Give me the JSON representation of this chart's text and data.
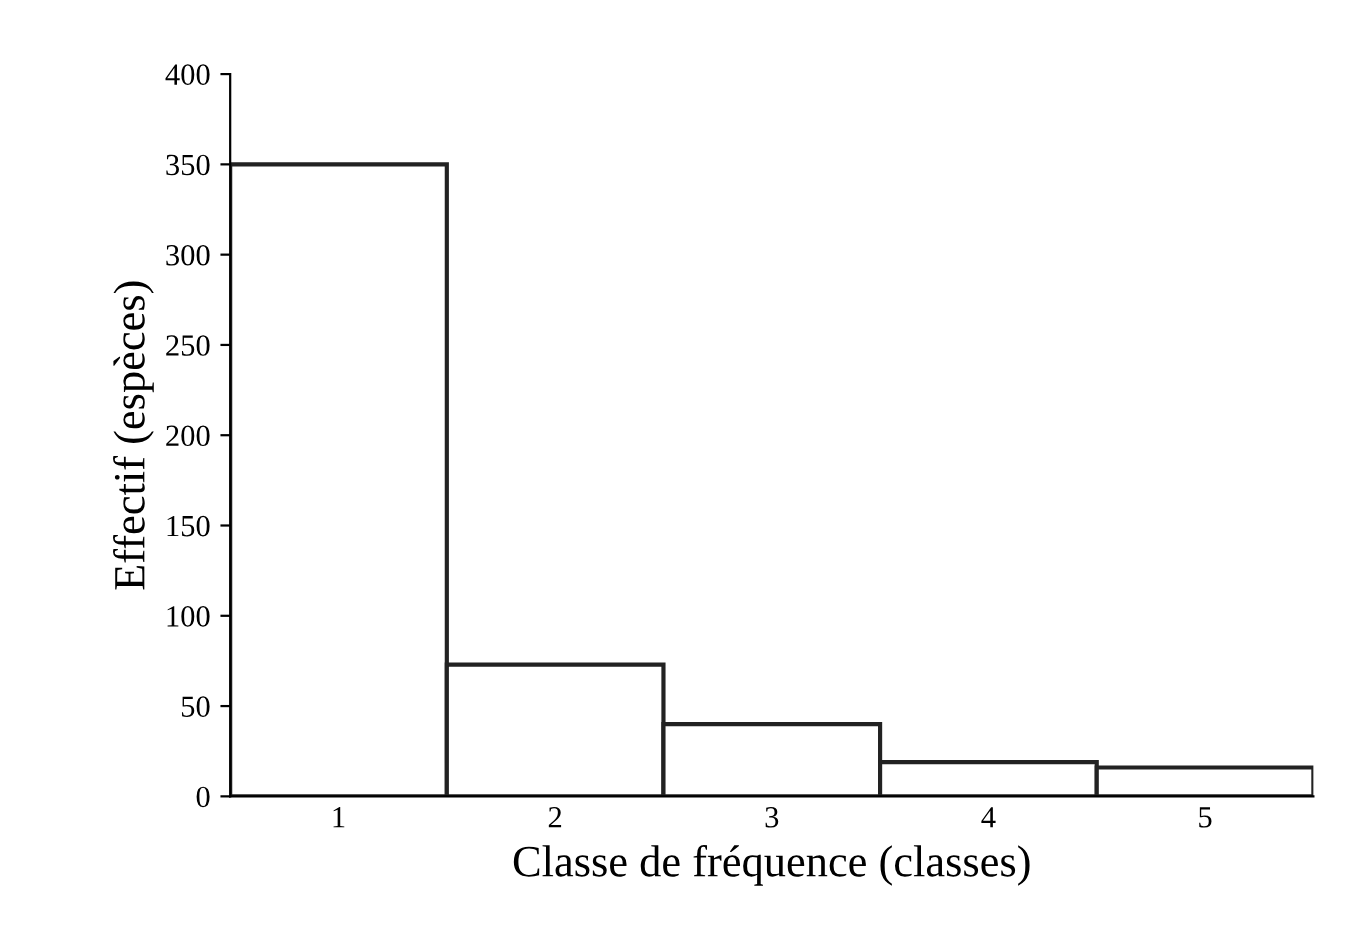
{
  "chart_data": {
    "type": "bar",
    "xlabel": "Classe de fréquence (classes)",
    "ylabel": "Effectif (espèces)",
    "categories": [
      "1",
      "2",
      "3",
      "4",
      "5"
    ],
    "series": [
      {
        "color": "#ffffff",
        "values": [
          350,
          73,
          40,
          19,
          16
        ]
      }
    ],
    "ylim": [
      0,
      400
    ],
    "yticks": [
      0,
      50,
      100,
      150,
      200,
      250,
      300,
      350,
      400
    ],
    "grid": false,
    "legend": false
  }
}
